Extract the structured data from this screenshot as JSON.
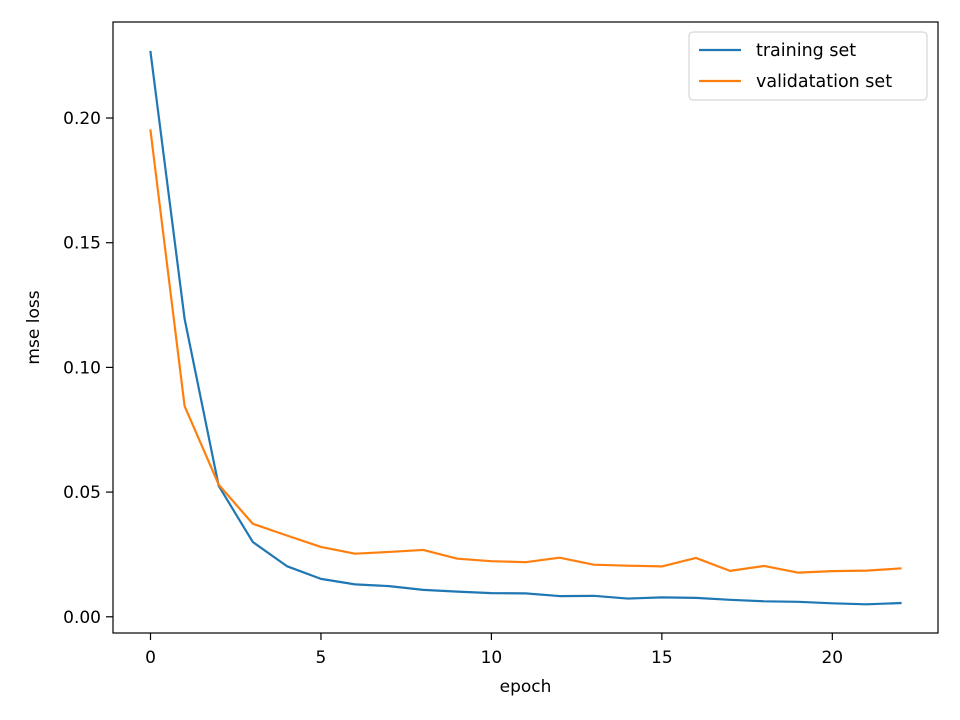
{
  "chart_data": {
    "type": "line",
    "title": "",
    "xlabel": "epoch",
    "ylabel": "mse loss",
    "xlim": [
      -1.1,
      23.1
    ],
    "ylim": [
      -0.0065,
      0.2385
    ],
    "xticks": [
      0,
      5,
      10,
      15,
      20
    ],
    "yticks": [
      0.0,
      0.05,
      0.1,
      0.15,
      0.2
    ],
    "xtick_labels": [
      "0",
      "5",
      "10",
      "15",
      "20"
    ],
    "ytick_labels": [
      "0.00",
      "0.05",
      "0.10",
      "0.15",
      "0.20"
    ],
    "grid": false,
    "legend_position": "top-right",
    "x": [
      0,
      1,
      2,
      3,
      4,
      5,
      6,
      7,
      8,
      9,
      10,
      11,
      12,
      13,
      14,
      15,
      16,
      17,
      18,
      19,
      20,
      21,
      22
    ],
    "series": [
      {
        "name": "training set",
        "color": "#1f77b4",
        "values": [
          0.2265,
          0.1195,
          0.0525,
          0.03,
          0.0203,
          0.0152,
          0.013,
          0.0123,
          0.0108,
          0.0101,
          0.0095,
          0.0094,
          0.0083,
          0.0084,
          0.0073,
          0.0078,
          0.0076,
          0.0068,
          0.0062,
          0.006,
          0.0054,
          0.005,
          0.0055
        ]
      },
      {
        "name": "validatation set",
        "color": "#ff7f0e",
        "values": [
          0.195,
          0.0845,
          0.053,
          0.0373,
          0.0326,
          0.028,
          0.0253,
          0.026,
          0.0268,
          0.0233,
          0.0223,
          0.0219,
          0.0237,
          0.0209,
          0.0205,
          0.0202,
          0.0236,
          0.0184,
          0.0204,
          0.0177,
          0.0183,
          0.0185,
          0.0194
        ]
      }
    ]
  }
}
